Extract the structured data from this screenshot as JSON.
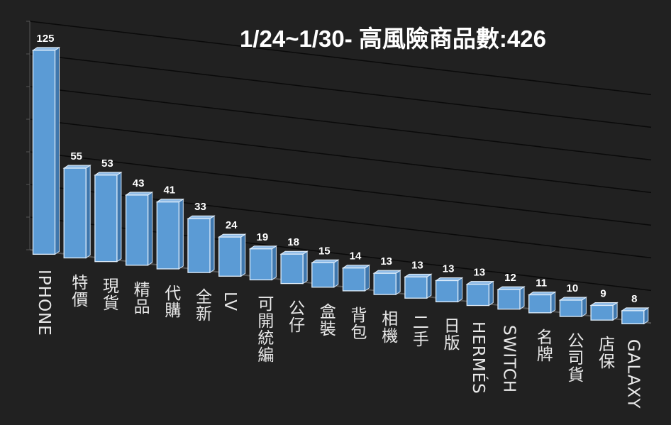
{
  "chart_data": {
    "type": "bar",
    "title": "1/24~1/30- 高風險商品數:426",
    "categories": [
      "IPHONE",
      "特價",
      "現貨",
      "精品",
      "代購",
      "全新",
      "LV",
      "可開統編",
      "公仔",
      "盒裝",
      "背包",
      "相機",
      "二手",
      "日版",
      "HERMÉS",
      "SWITCH",
      "名牌",
      "公司貨",
      "店保",
      "GALAXY"
    ],
    "values": [
      125,
      55,
      53,
      43,
      41,
      33,
      24,
      19,
      18,
      15,
      14,
      13,
      13,
      13,
      13,
      12,
      11,
      10,
      9,
      8
    ],
    "ylim": [
      0,
      140
    ],
    "grid": true,
    "style": "3d-column",
    "colors": {
      "bar": "#5b9bd5",
      "background": "#212121",
      "text": "#ffffff"
    }
  }
}
